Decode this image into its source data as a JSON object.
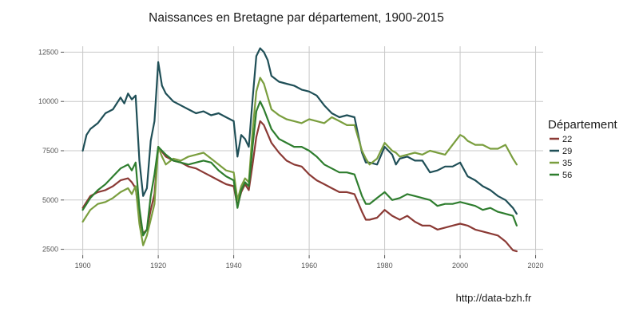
{
  "chart_data": {
    "type": "line",
    "title": "Naissances en Bretagne par département, 1900-2015",
    "xlabel": "",
    "ylabel": "",
    "xlim": [
      1895,
      2022
    ],
    "ylim": [
      2200,
      12800
    ],
    "x_ticks": [
      1900,
      1920,
      1940,
      1960,
      1980,
      2000,
      2020
    ],
    "y_ticks": [
      2500,
      5000,
      7500,
      10000,
      12500
    ],
    "grid": true,
    "legend": {
      "title": "Département",
      "placement": "right"
    },
    "series": [
      {
        "name": "22",
        "color": "#8b3a35",
        "x": [
          1900,
          1902,
          1904,
          1906,
          1908,
          1910,
          1912,
          1913,
          1914,
          1915,
          1916,
          1917,
          1918,
          1919,
          1920,
          1922,
          1924,
          1926,
          1928,
          1930,
          1932,
          1934,
          1936,
          1938,
          1940,
          1941,
          1942,
          1943,
          1944,
          1945,
          1946,
          1947,
          1948,
          1950,
          1952,
          1954,
          1956,
          1958,
          1960,
          1962,
          1964,
          1966,
          1968,
          1970,
          1972,
          1974,
          1975,
          1976,
          1978,
          1980,
          1982,
          1984,
          1986,
          1988,
          1990,
          1992,
          1994,
          1996,
          1998,
          2000,
          2002,
          2004,
          2006,
          2008,
          2010,
          2012,
          2014,
          2015
        ],
        "y": [
          4600,
          5200,
          5400,
          5500,
          5700,
          6000,
          6100,
          5900,
          5600,
          4200,
          3300,
          3500,
          4500,
          5300,
          7700,
          7200,
          7000,
          6900,
          6700,
          6600,
          6400,
          6200,
          6000,
          5800,
          5700,
          4700,
          5400,
          5800,
          5500,
          6800,
          8200,
          9000,
          8800,
          7900,
          7400,
          7000,
          6800,
          6700,
          6300,
          6000,
          5800,
          5600,
          5400,
          5400,
          5300,
          4400,
          4000,
          4000,
          4100,
          4500,
          4200,
          4000,
          4200,
          3900,
          3700,
          3700,
          3500,
          3600,
          3700,
          3800,
          3700,
          3500,
          3400,
          3300,
          3200,
          2900,
          2450,
          2400
        ]
      },
      {
        "name": "29",
        "color": "#1f4f57",
        "x": [
          1900,
          1901,
          1902,
          1904,
          1906,
          1908,
          1910,
          1911,
          1912,
          1913,
          1914,
          1915,
          1916,
          1917,
          1918,
          1919,
          1920,
          1921,
          1922,
          1924,
          1926,
          1928,
          1930,
          1932,
          1934,
          1936,
          1938,
          1940,
          1941,
          1942,
          1943,
          1944,
          1945,
          1946,
          1947,
          1948,
          1949,
          1950,
          1952,
          1954,
          1956,
          1958,
          1960,
          1962,
          1964,
          1966,
          1968,
          1970,
          1972,
          1974,
          1975,
          1976,
          1978,
          1980,
          1982,
          1983,
          1984,
          1986,
          1988,
          1990,
          1992,
          1994,
          1996,
          1998,
          2000,
          2002,
          2004,
          2006,
          2008,
          2010,
          2012,
          2014,
          2015
        ],
        "y": [
          7500,
          8300,
          8600,
          8900,
          9400,
          9600,
          10200,
          9900,
          10400,
          10100,
          10300,
          7000,
          5200,
          5600,
          8000,
          9000,
          12000,
          10800,
          10400,
          10000,
          9800,
          9600,
          9400,
          9500,
          9300,
          9400,
          9200,
          9000,
          7200,
          8300,
          8100,
          7700,
          10100,
          12300,
          12700,
          12500,
          12100,
          11300,
          11000,
          10900,
          10800,
          10600,
          10500,
          10300,
          9800,
          9400,
          9200,
          9300,
          9200,
          7400,
          6900,
          6900,
          6800,
          7700,
          7300,
          6800,
          7100,
          7200,
          7000,
          7000,
          6400,
          6500,
          6700,
          6700,
          6900,
          6200,
          6000,
          5700,
          5500,
          5200,
          5000,
          4600,
          4300
        ]
      },
      {
        "name": "35",
        "color": "#7a9e3e",
        "x": [
          1900,
          1902,
          1904,
          1906,
          1908,
          1910,
          1912,
          1913,
          1914,
          1915,
          1916,
          1917,
          1918,
          1919,
          1920,
          1921,
          1922,
          1924,
          1926,
          1928,
          1930,
          1932,
          1934,
          1936,
          1938,
          1940,
          1941,
          1942,
          1943,
          1944,
          1945,
          1946,
          1947,
          1948,
          1950,
          1952,
          1954,
          1956,
          1958,
          1960,
          1962,
          1964,
          1966,
          1968,
          1970,
          1972,
          1974,
          1975,
          1976,
          1978,
          1980,
          1982,
          1983,
          1984,
          1986,
          1988,
          1990,
          1992,
          1994,
          1996,
          1998,
          2000,
          2001,
          2002,
          2004,
          2006,
          2008,
          2010,
          2012,
          2014,
          2015
        ],
        "y": [
          3900,
          4500,
          4800,
          4900,
          5100,
          5400,
          5600,
          5300,
          5700,
          3800,
          2700,
          3200,
          4000,
          4800,
          7700,
          7200,
          6800,
          7100,
          7000,
          7200,
          7300,
          7400,
          7100,
          6800,
          6500,
          6400,
          5000,
          5700,
          6100,
          5900,
          8500,
          10500,
          11200,
          10900,
          9600,
          9300,
          9100,
          9000,
          8900,
          9100,
          9000,
          8900,
          9200,
          9000,
          8800,
          8800,
          7500,
          7100,
          6800,
          7100,
          7900,
          7500,
          7400,
          7200,
          7300,
          7400,
          7300,
          7500,
          7400,
          7300,
          7800,
          8300,
          8200,
          8000,
          7800,
          7800,
          7600,
          7600,
          7800,
          7100,
          6800
        ]
      },
      {
        "name": "56",
        "color": "#2e7d2e",
        "x": [
          1900,
          1902,
          1904,
          1906,
          1908,
          1910,
          1912,
          1913,
          1914,
          1915,
          1916,
          1917,
          1918,
          1919,
          1920,
          1922,
          1924,
          1926,
          1928,
          1930,
          1932,
          1934,
          1936,
          1938,
          1940,
          1941,
          1942,
          1943,
          1944,
          1945,
          1946,
          1947,
          1948,
          1950,
          1952,
          1954,
          1956,
          1958,
          1960,
          1962,
          1964,
          1966,
          1968,
          1970,
          1972,
          1974,
          1975,
          1976,
          1978,
          1980,
          1982,
          1984,
          1986,
          1988,
          1990,
          1992,
          1994,
          1996,
          1998,
          2000,
          2002,
          2004,
          2006,
          2008,
          2010,
          2012,
          2014,
          2015
        ],
        "y": [
          4500,
          5100,
          5500,
          5800,
          6200,
          6600,
          6800,
          6500,
          6900,
          4600,
          3200,
          3500,
          5200,
          6300,
          7700,
          7300,
          7000,
          6900,
          6800,
          6900,
          7000,
          6900,
          6500,
          6200,
          6000,
          4600,
          5500,
          5900,
          5700,
          7700,
          9500,
          10000,
          9600,
          8600,
          8100,
          7900,
          7700,
          7700,
          7500,
          7200,
          6800,
          6600,
          6400,
          6400,
          6300,
          5200,
          4800,
          4800,
          5100,
          5400,
          5000,
          5100,
          5300,
          5200,
          5100,
          5000,
          4700,
          4800,
          4800,
          4900,
          4800,
          4700,
          4500,
          4600,
          4400,
          4300,
          4200,
          3700
        ]
      }
    ]
  },
  "source": "http://data-bzh.fr"
}
